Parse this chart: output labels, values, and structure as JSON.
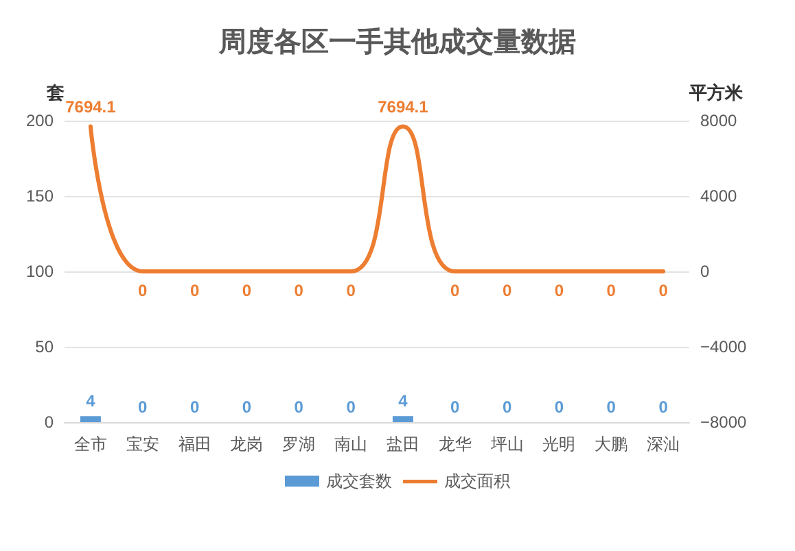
{
  "chart_data": {
    "type": "bar",
    "title": "周度各区一手其他成交量数据",
    "ylabel": "套",
    "y2label": "平方米",
    "categories": [
      "全市",
      "宝安",
      "福田",
      "龙岗",
      "罗湖",
      "南山",
      "盐田",
      "龙华",
      "坪山",
      "光明",
      "大鹏",
      "深汕"
    ],
    "series": [
      {
        "name": "成交套数",
        "color": "#5b9bd5",
        "values": [
          4,
          0,
          0,
          0,
          0,
          0,
          4,
          0,
          0,
          0,
          0,
          0
        ]
      },
      {
        "name": "成交面积",
        "type": "line",
        "axis": "y2",
        "color": "#ed7d31",
        "values": [
          7694.1,
          0,
          0,
          0,
          0,
          0,
          7694.1,
          0,
          0,
          0,
          0,
          0
        ]
      }
    ],
    "ylim": [
      0,
      200
    ],
    "yticks": [
      0,
      50,
      100,
      150,
      200
    ],
    "y2lim": [
      -8000,
      8000
    ],
    "y2ticks": [
      -8000,
      -4000,
      0,
      4000,
      8000
    ],
    "grid": "y",
    "legend": "bottom",
    "data_labels": true,
    "marker": "none",
    "line_style": "solid"
  }
}
